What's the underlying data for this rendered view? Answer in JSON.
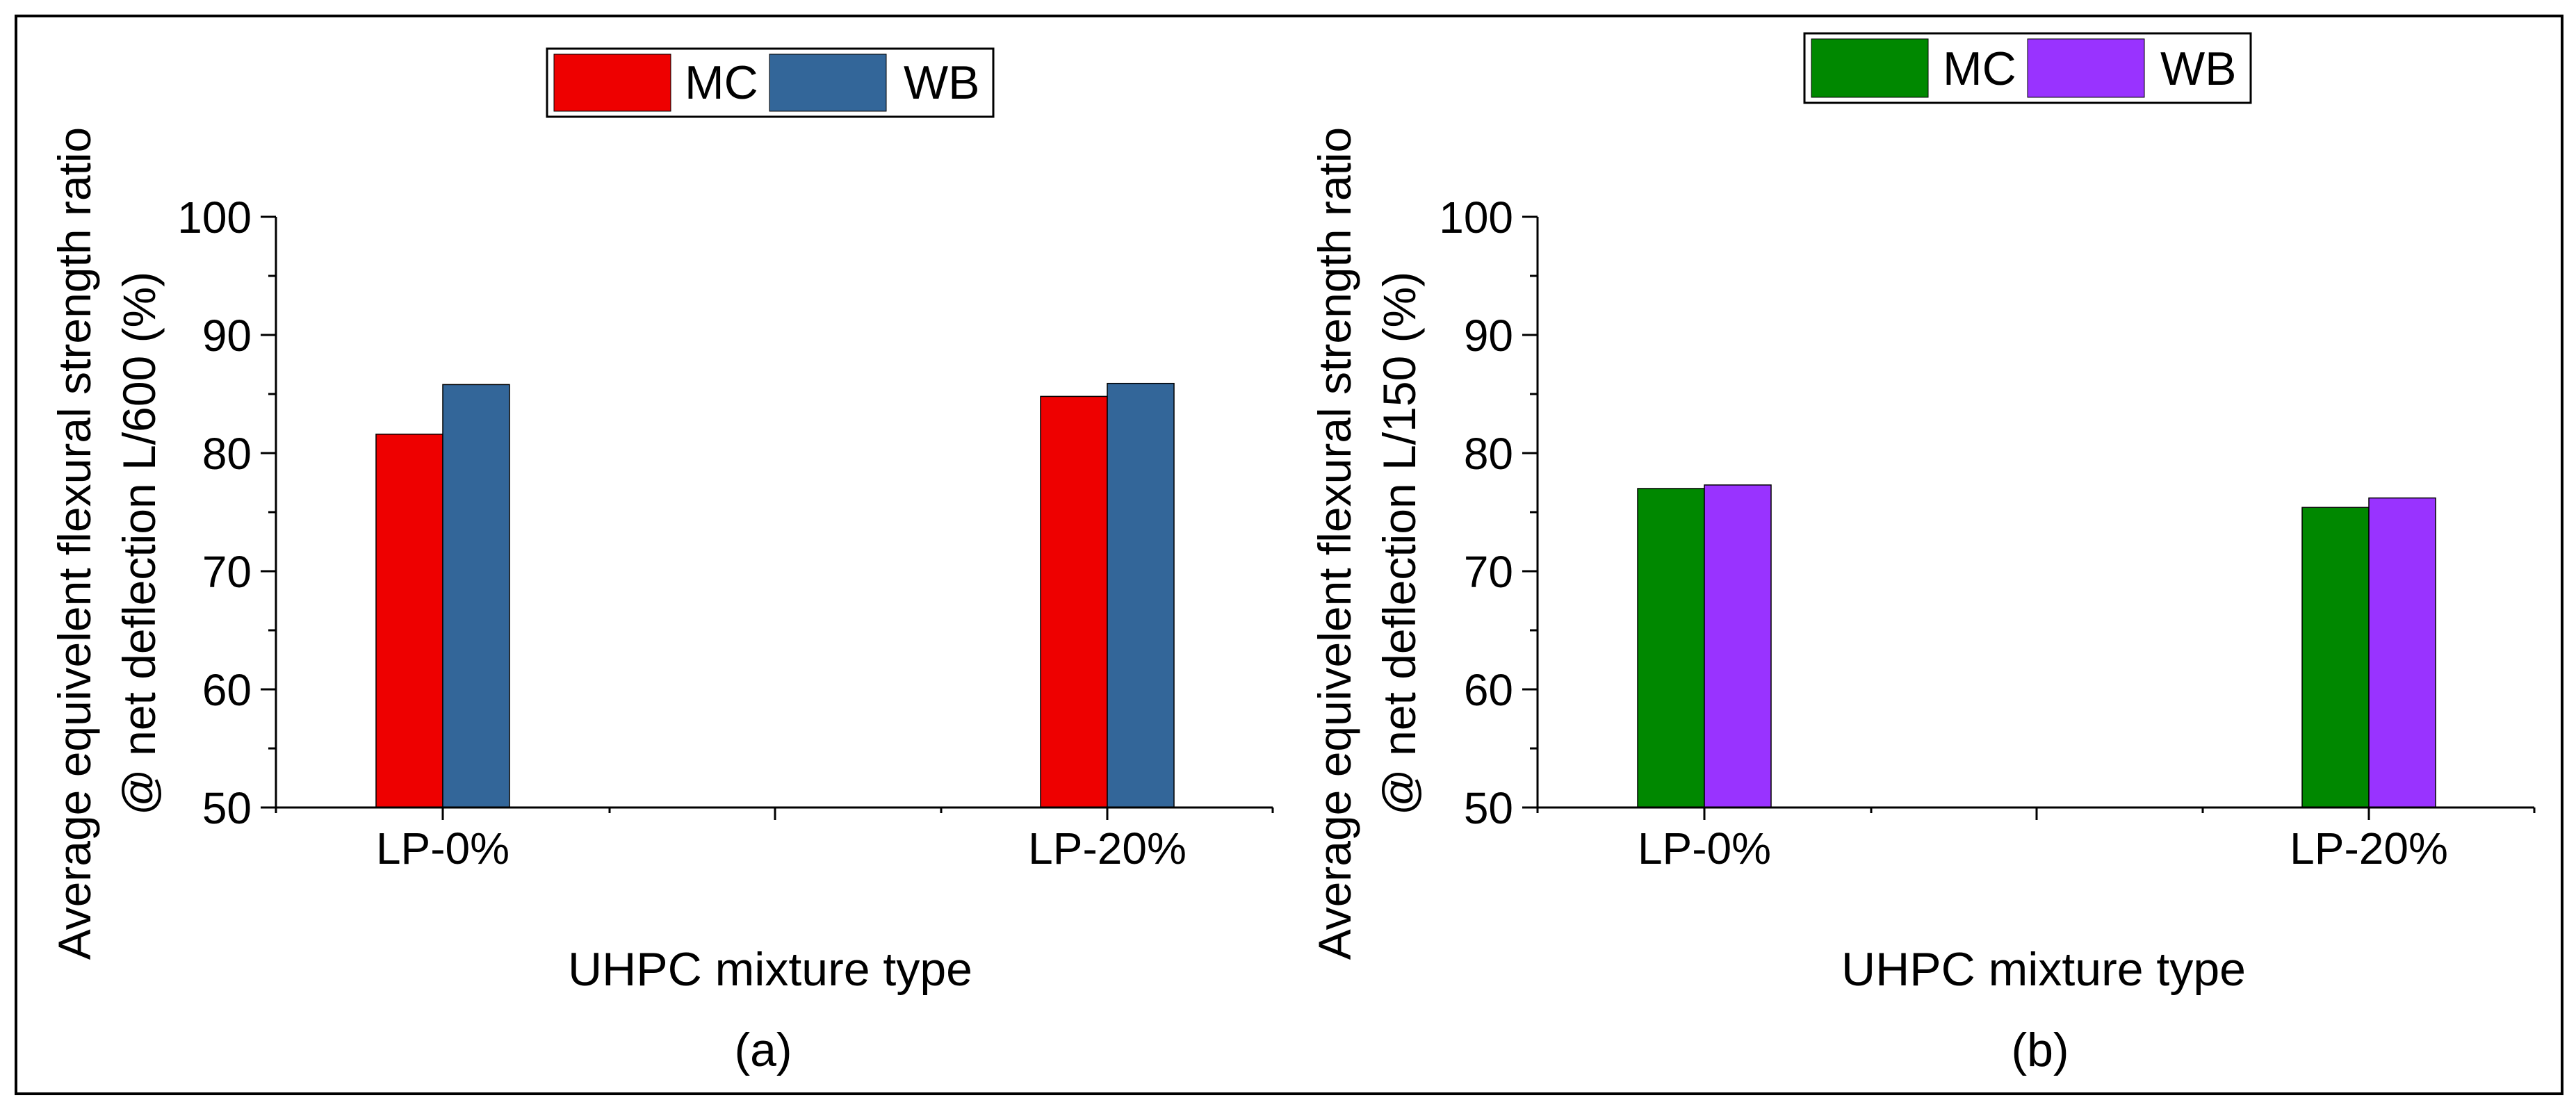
{
  "chart_data": [
    {
      "type": "bar",
      "panel_label": "(a)",
      "categories": [
        "LP-0%",
        "LP-20%"
      ],
      "series": [
        {
          "name": "MC",
          "values": [
            81.6,
            84.8
          ],
          "color": "#ee0000"
        },
        {
          "name": "WB",
          "values": [
            85.8,
            85.9
          ],
          "color": "#336699"
        }
      ],
      "xlabel": "UHPC mixture type",
      "ylabel_lines": [
        "Average equivelent flexural strength ratio",
        "@ net deflection L/600 (%)"
      ],
      "ylim": [
        50,
        100
      ],
      "yticks": [
        "50",
        "60",
        "70",
        "80",
        "90",
        "100"
      ],
      "grid": false,
      "legend_position": "top-center"
    },
    {
      "type": "bar",
      "panel_label": "(b)",
      "categories": [
        "LP-0%",
        "LP-20%"
      ],
      "series": [
        {
          "name": "MC",
          "values": [
            77.0,
            75.4
          ],
          "color": "#008800"
        },
        {
          "name": "WB",
          "values": [
            77.3,
            76.2
          ],
          "color": "#9933ff"
        }
      ],
      "xlabel": "UHPC mixture type",
      "ylabel_lines": [
        "Average equivelent flexural strength ratio",
        "@ net deflection L/150 (%)"
      ],
      "ylim": [
        50,
        100
      ],
      "yticks": [
        "50",
        "60",
        "70",
        "80",
        "90",
        "100"
      ],
      "grid": false,
      "legend_position": "top-center"
    }
  ]
}
